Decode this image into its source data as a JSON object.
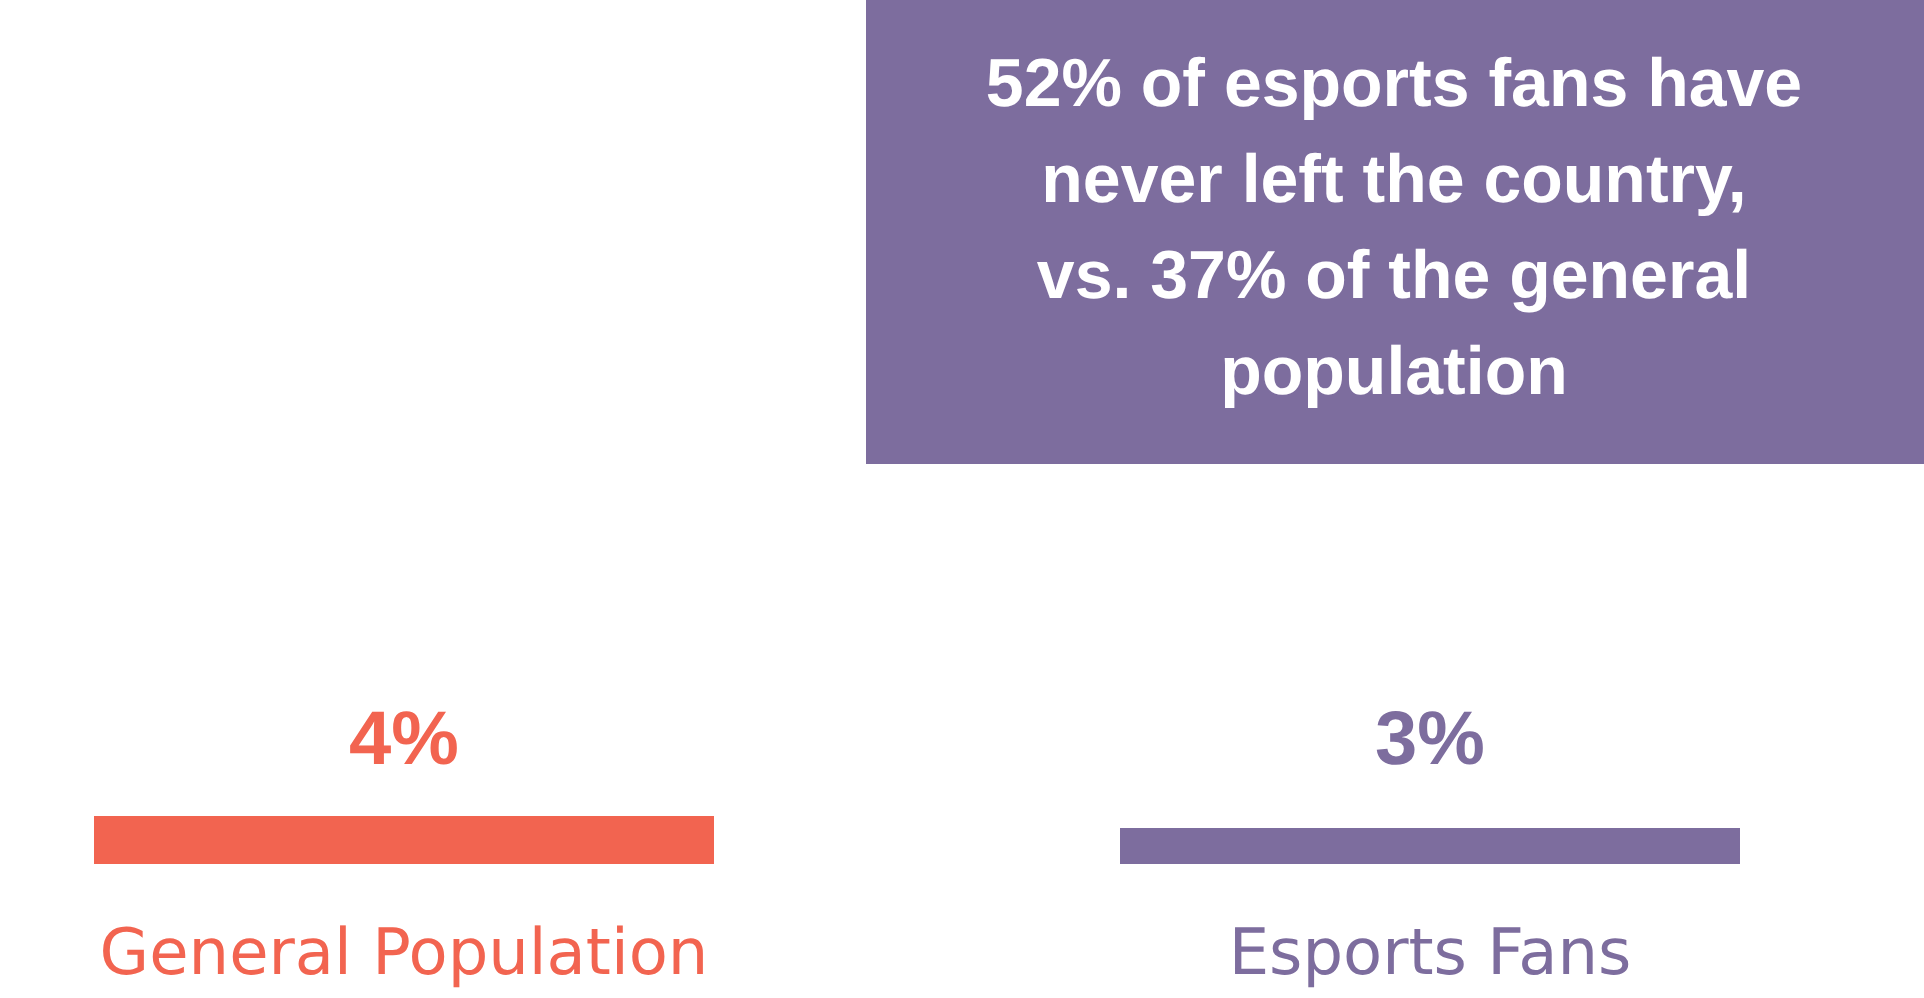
{
  "chart_data": {
    "type": "bar",
    "categories": [
      "General Population",
      "Esports Fans"
    ],
    "values": [
      4,
      3
    ],
    "value_labels": [
      "4%",
      "3%"
    ],
    "colors": [
      "#f26450",
      "#7d6d9e"
    ],
    "annotations": [
      "52% of esports fans have never left the country, vs. 37% of the general population"
    ]
  }
}
